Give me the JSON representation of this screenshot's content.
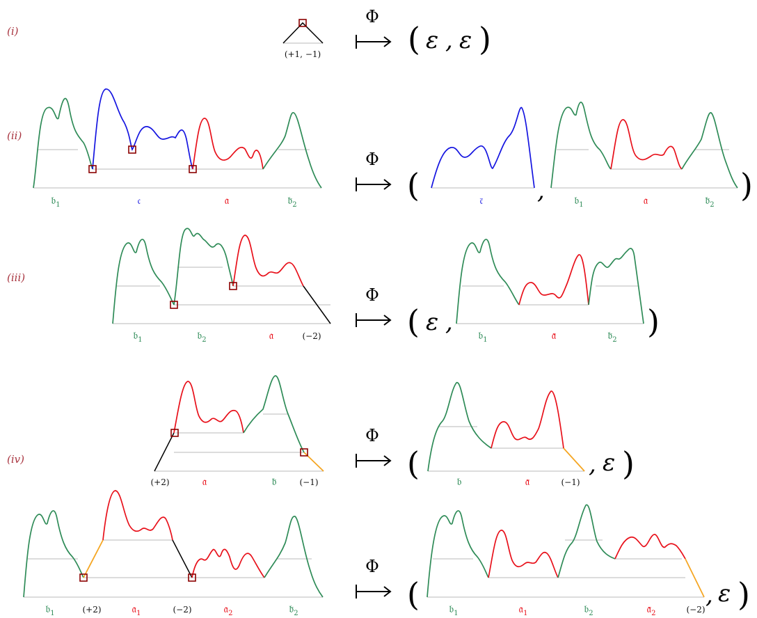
{
  "cases": [
    "(i)",
    "(ii)",
    "(iii)",
    "(iv)"
  ],
  "map_symbol": "Φ",
  "epsilon": "ε",
  "colors": {
    "green": "#2e8b57",
    "red": "#e8101a",
    "blue": "#1414e0",
    "black": "#000000",
    "orange": "#f5a623",
    "marker": "#8b0000",
    "label_case": "#a8343f"
  },
  "row1": {
    "step_label": "(+1, −1)"
  },
  "row2": {
    "left": {
      "b1": "𝔟",
      "b1_sub": "1",
      "c": "𝔠",
      "a": "𝔞",
      "b2": "𝔟̄",
      "b2_sub": "2"
    },
    "right1": {
      "c": "𝔠̄"
    },
    "right2": {
      "b1": "𝔟",
      "b1_sub": "1",
      "a": "𝔞",
      "b2": "𝔟̄",
      "b2_sub": "2"
    }
  },
  "row3": {
    "left": {
      "b1": "𝔟",
      "b1_sub": "1",
      "b2": "𝔟",
      "b2_sub": "2",
      "a": "𝔞",
      "step": "(−2)"
    },
    "right": {
      "b1": "𝔟",
      "b1_sub": "1",
      "a": "𝔞̄",
      "b2": "𝔟̄",
      "b2_sub": "2"
    }
  },
  "row4": {
    "left": {
      "step1": "(+2)",
      "a": "𝔞",
      "b": "𝔟̄",
      "step2": "(−1)"
    },
    "right": {
      "b": "𝔟",
      "a": "𝔞̄",
      "step": "(−1)"
    }
  },
  "row5": {
    "left": {
      "b1": "𝔟",
      "b1_sub": "1",
      "step1": "(+2)",
      "a1": "𝔞",
      "a1_sub": "1",
      "step2": "(−2)",
      "a2": "𝔞",
      "a2_sub": "2",
      "b2": "𝔟̄",
      "b2_sub": "2"
    },
    "right": {
      "b1": "𝔟",
      "b1_sub": "1",
      "a1": "𝔞",
      "a1_sub": "1",
      "b2": "𝔟",
      "b2_sub": "2",
      "a2": "𝔞̄",
      "a2_sub": "2",
      "step": "(−2)"
    }
  }
}
